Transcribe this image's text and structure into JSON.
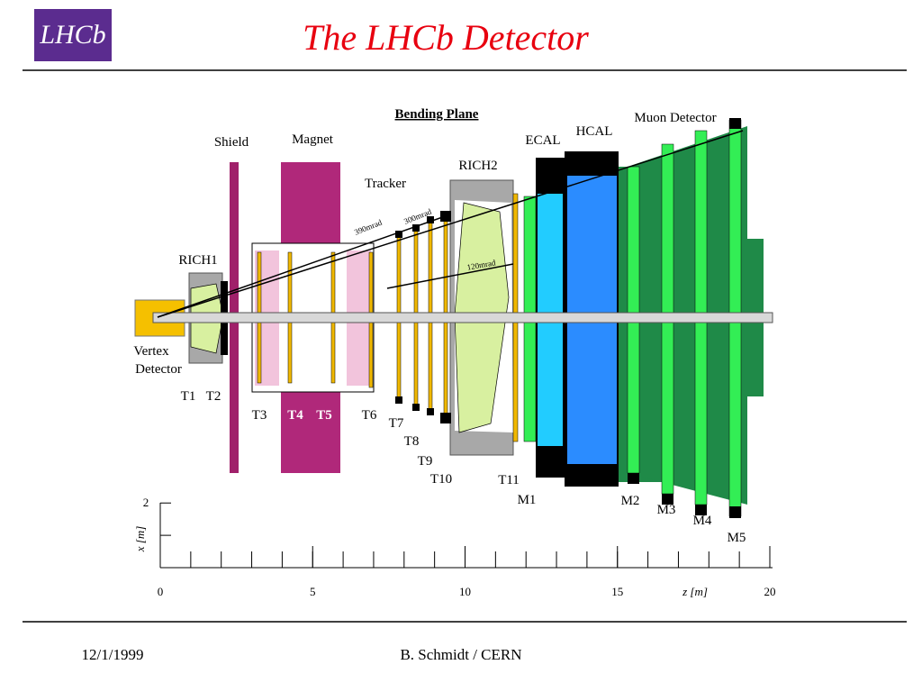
{
  "header": {
    "logo": "LHCb",
    "title": "The LHCb  Detector"
  },
  "diagram": {
    "heading": "Bending Plane",
    "labels": {
      "shield": "Shield",
      "magnet": "Magnet",
      "tracker": "Tracker",
      "rich2": "RICH2",
      "ecal": "ECAL",
      "hcal": "HCAL",
      "muon": "Muon Detector",
      "rich1": "RICH1",
      "vertex_1": "Vertex",
      "vertex_2": "Detector"
    },
    "angles": [
      "390mrad",
      "300mrad",
      "120mrad"
    ],
    "stations": [
      "T1",
      "T2",
      "T3",
      "T4",
      "T5",
      "T6",
      "T7",
      "T8",
      "T9",
      "T10",
      "T11"
    ],
    "muon_stations": [
      "M1",
      "M2",
      "M3",
      "M4",
      "M5"
    ]
  },
  "scale": {
    "z_label": "z [m]",
    "z_ticks": [
      0,
      5,
      10,
      15,
      20
    ],
    "x_label": "x [m]",
    "x_ticks": [
      2
    ]
  },
  "footer": {
    "date": "12/1/1999",
    "author": "B. Schmidt / CERN"
  }
}
